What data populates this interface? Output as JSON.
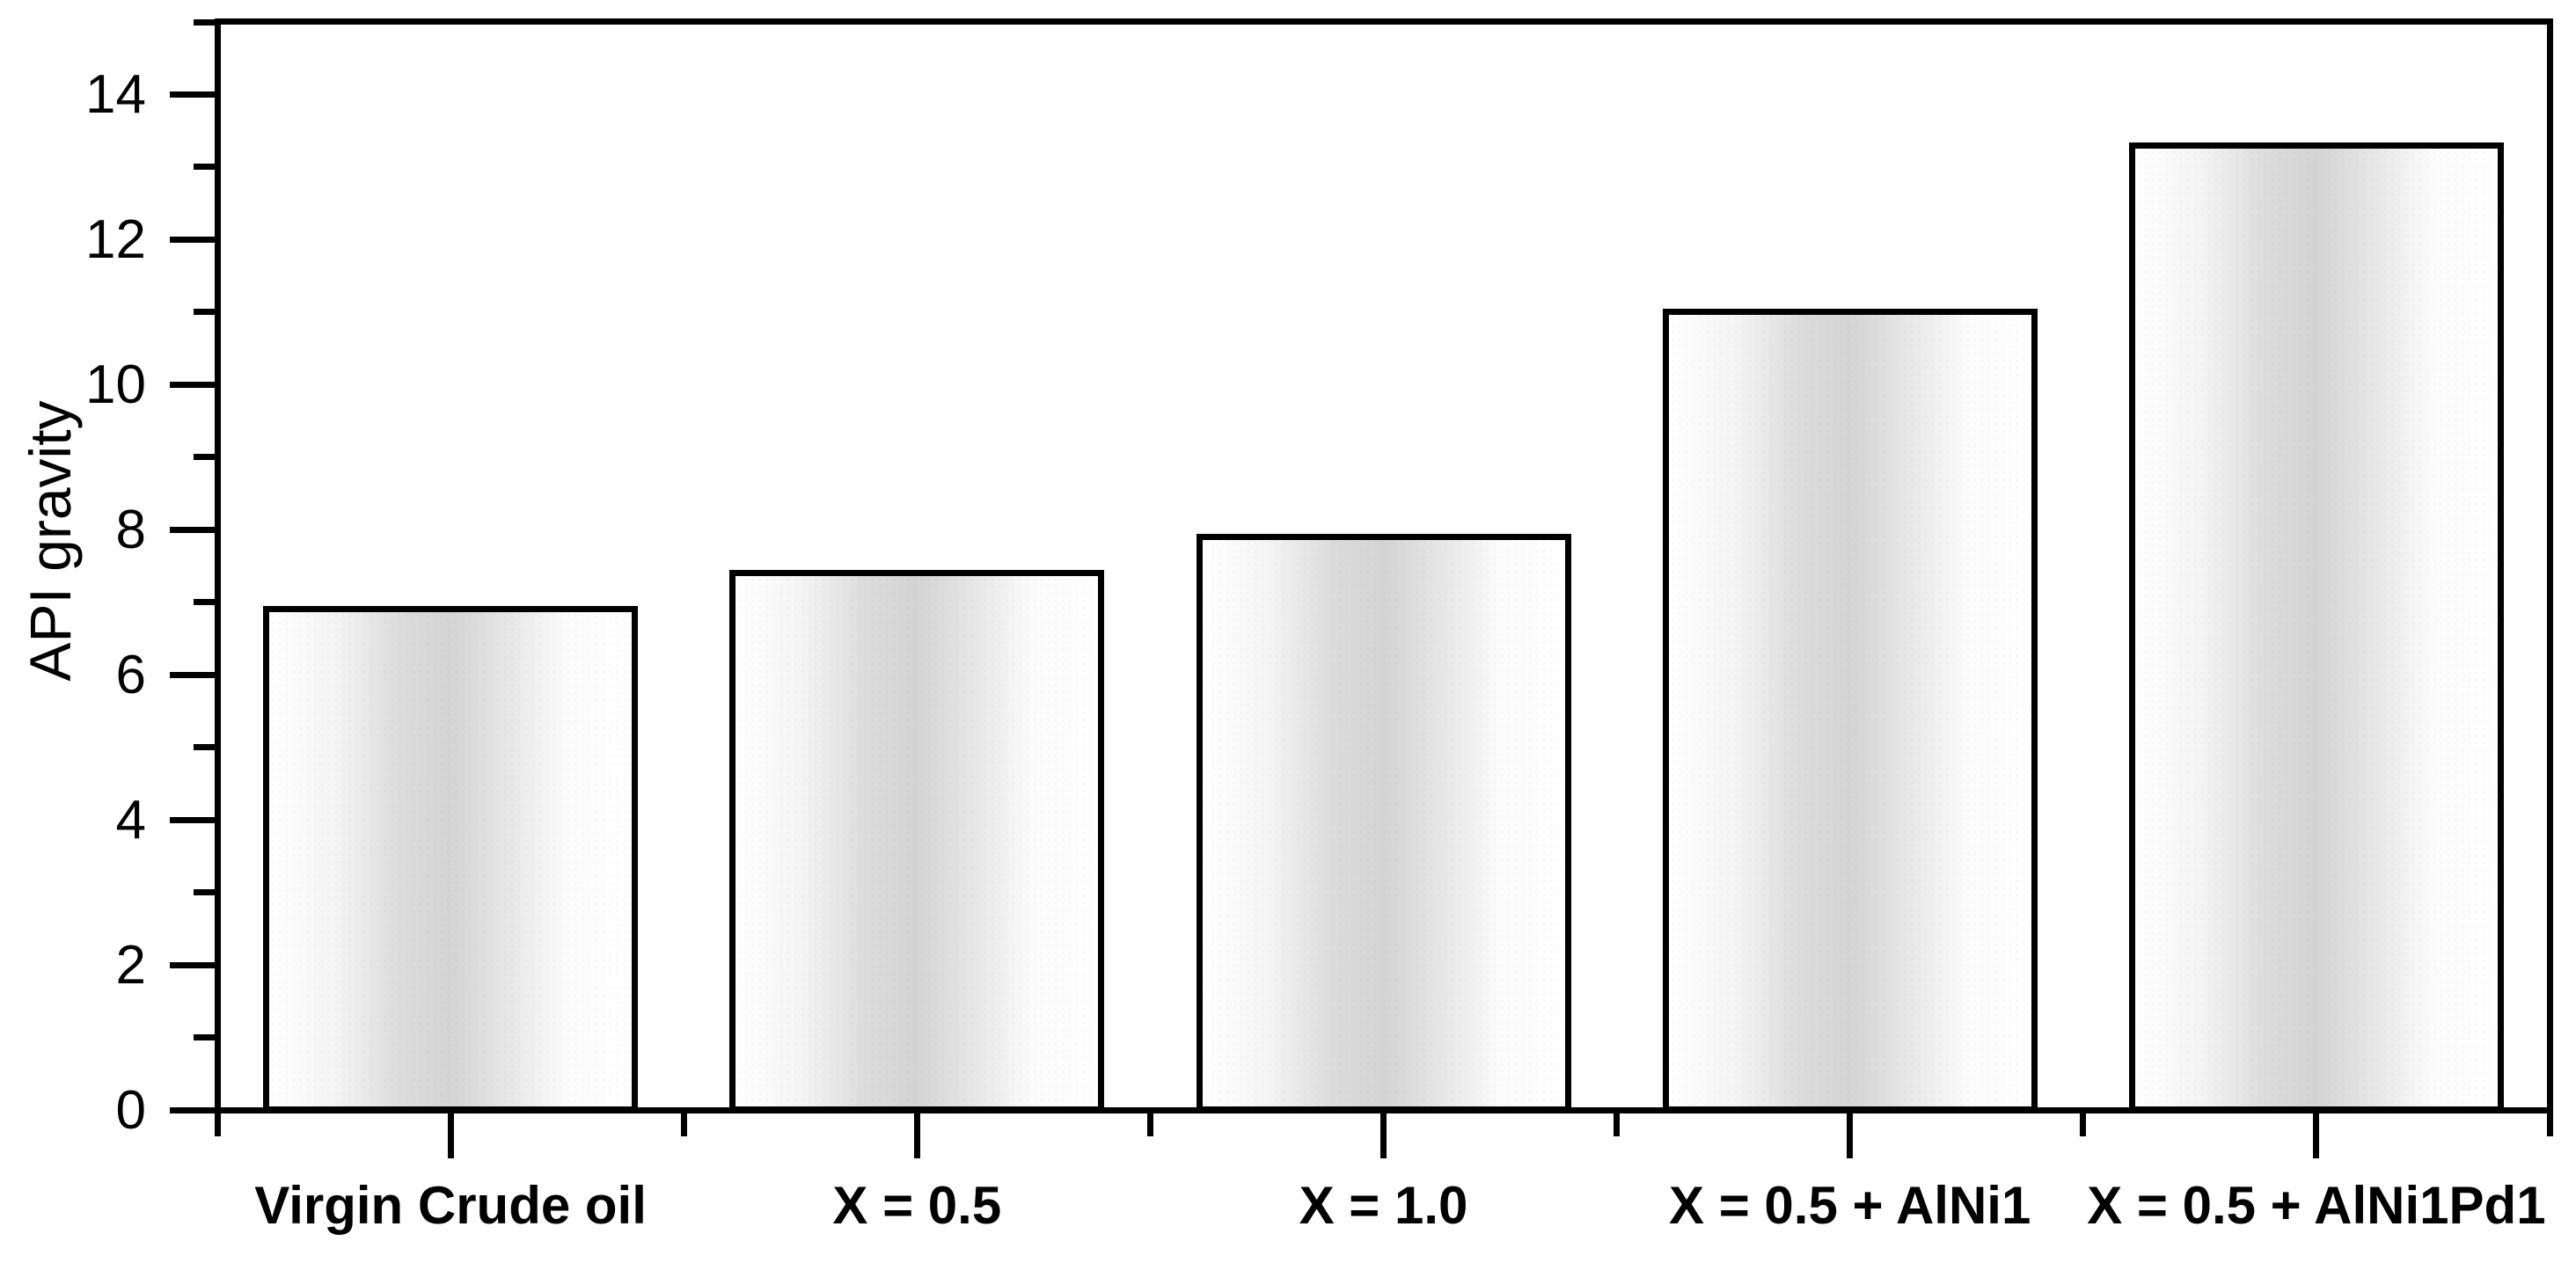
{
  "chart_data": {
    "type": "bar",
    "title": "",
    "ylabel": "API gravity",
    "xlabel": "",
    "categories": [
      "Virgin Crude oil",
      "X = 0.5",
      "X = 1.0",
      "X = 0.5 + AlNi1",
      "X = 0.5 + AlNi1Pd1"
    ],
    "values": [
      6.9,
      7.4,
      7.9,
      11.0,
      13.3
    ],
    "ylim": [
      0,
      15
    ],
    "y_major_ticks": [
      0,
      2,
      4,
      6,
      8,
      10,
      12,
      14
    ],
    "y_minor_ticks": [
      1,
      3,
      5,
      7,
      9,
      11,
      13,
      15
    ],
    "grid": false,
    "legend": null,
    "axis_color": "#000000",
    "text_color": "#000000",
    "bar_border_color": "#000000",
    "bar_gradient": [
      "#ffffff",
      "#d4d4d4",
      "#ffffff"
    ],
    "background_color": "#ffffff"
  }
}
